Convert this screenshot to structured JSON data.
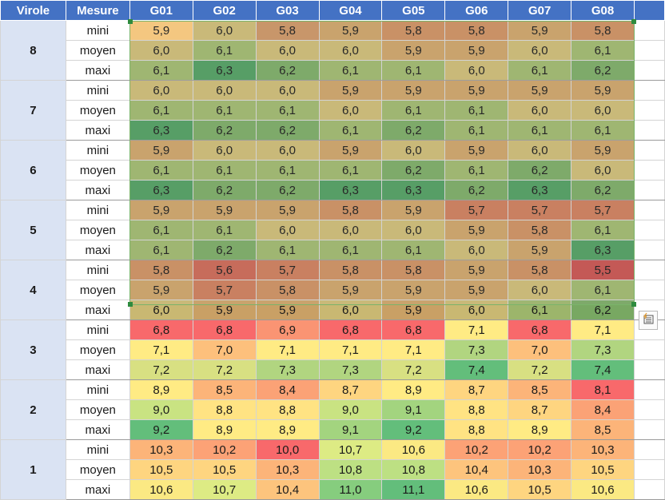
{
  "header": {
    "virole": "Virole",
    "mesure": "Mesure",
    "columns": [
      "G01",
      "G02",
      "G03",
      "G04",
      "G05",
      "G06",
      "G07",
      "G08"
    ]
  },
  "groups": [
    {
      "virole": "8",
      "rows": [
        {
          "mesure": "mini",
          "values": [
            "5,9",
            "6,0",
            "5,8",
            "5,9",
            "5,8",
            "5,8",
            "5,9",
            "5,8"
          ],
          "colors": [
            "#f8c77a",
            "#c9b872",
            "#c89262",
            "#c9a065",
            "#c98c5e",
            "#c98c5e",
            "#c9a065",
            "#c98c5e"
          ]
        },
        {
          "mesure": "moyen",
          "values": [
            "6,0",
            "6,1",
            "6,0",
            "6,0",
            "5,9",
            "5,9",
            "6,0",
            "6,1"
          ],
          "colors": [
            "#c9b872",
            "#9cb56b",
            "#c9b872",
            "#c9b872",
            "#c9a065",
            "#c9a065",
            "#c9b872",
            "#9cb56b"
          ]
        },
        {
          "mesure": "maxi",
          "values": [
            "6,1",
            "6,3",
            "6,2",
            "6,1",
            "6,1",
            "6,0",
            "6,1",
            "6,2"
          ],
          "colors": [
            "#9cb56b",
            "#4e9b5e",
            "#78a862",
            "#9cb56b",
            "#9cb56b",
            "#c9b872",
            "#9cb56b",
            "#78a862"
          ]
        }
      ]
    },
    {
      "virole": "7",
      "rows": [
        {
          "mesure": "mini",
          "values": [
            "6,0",
            "6,0",
            "6,0",
            "5,9",
            "5,9",
            "5,9",
            "5,9",
            "5,9"
          ],
          "colors": [
            "#c9b872",
            "#c9b872",
            "#c9b872",
            "#c9a065",
            "#c9a065",
            "#c9a065",
            "#c9a065",
            "#c9a065"
          ]
        },
        {
          "mesure": "moyen",
          "values": [
            "6,1",
            "6,1",
            "6,1",
            "6,0",
            "6,1",
            "6,1",
            "6,0",
            "6,0"
          ],
          "colors": [
            "#9cb56b",
            "#9cb56b",
            "#9cb56b",
            "#c9b872",
            "#9cb56b",
            "#9cb56b",
            "#c9b872",
            "#c9b872"
          ]
        },
        {
          "mesure": "maxi",
          "values": [
            "6,3",
            "6,2",
            "6,2",
            "6,1",
            "6,2",
            "6,1",
            "6,1",
            "6,1"
          ],
          "colors": [
            "#4e9b5e",
            "#78a862",
            "#78a862",
            "#9cb56b",
            "#78a862",
            "#9cb56b",
            "#9cb56b",
            "#9cb56b"
          ]
        }
      ]
    },
    {
      "virole": "6",
      "rows": [
        {
          "mesure": "mini",
          "values": [
            "5,9",
            "6,0",
            "6,0",
            "5,9",
            "6,0",
            "5,9",
            "6,0",
            "5,9"
          ],
          "colors": [
            "#c9a065",
            "#c9b872",
            "#c9b872",
            "#c9a065",
            "#c9b872",
            "#c9a065",
            "#c9b872",
            "#c9a065"
          ]
        },
        {
          "mesure": "moyen",
          "values": [
            "6,1",
            "6,1",
            "6,1",
            "6,1",
            "6,2",
            "6,1",
            "6,2",
            "6,0"
          ],
          "colors": [
            "#9cb56b",
            "#9cb56b",
            "#9cb56b",
            "#9cb56b",
            "#78a862",
            "#9cb56b",
            "#78a862",
            "#c9b872"
          ]
        },
        {
          "mesure": "maxi",
          "values": [
            "6,3",
            "6,2",
            "6,2",
            "6,3",
            "6,3",
            "6,2",
            "6,3",
            "6,2"
          ],
          "colors": [
            "#4e9b5e",
            "#78a862",
            "#78a862",
            "#4e9b5e",
            "#4e9b5e",
            "#78a862",
            "#4e9b5e",
            "#78a862"
          ]
        }
      ]
    },
    {
      "virole": "5",
      "rows": [
        {
          "mesure": "mini",
          "values": [
            "5,9",
            "5,9",
            "5,9",
            "5,8",
            "5,9",
            "5,7",
            "5,7",
            "5,7"
          ],
          "colors": [
            "#c9a065",
            "#c9a065",
            "#c9a065",
            "#c98c5e",
            "#c9a065",
            "#c97a58",
            "#c97a58",
            "#c97a58"
          ]
        },
        {
          "mesure": "moyen",
          "values": [
            "6,1",
            "6,1",
            "6,0",
            "6,0",
            "6,0",
            "5,9",
            "5,8",
            "6,1"
          ],
          "colors": [
            "#9cb56b",
            "#9cb56b",
            "#c9b872",
            "#c9b872",
            "#c9b872",
            "#c9a065",
            "#c98c5e",
            "#9cb56b"
          ]
        },
        {
          "mesure": "maxi",
          "values": [
            "6,1",
            "6,2",
            "6,1",
            "6,1",
            "6,1",
            "6,0",
            "5,9",
            "6,3"
          ],
          "colors": [
            "#9cb56b",
            "#78a862",
            "#9cb56b",
            "#9cb56b",
            "#9cb56b",
            "#c9b872",
            "#c9a065",
            "#4e9b5e"
          ]
        }
      ]
    },
    {
      "virole": "4",
      "rows": [
        {
          "mesure": "mini",
          "values": [
            "5,8",
            "5,6",
            "5,7",
            "5,8",
            "5,8",
            "5,9",
            "5,8",
            "5,5"
          ],
          "colors": [
            "#c98c5e",
            "#c76452",
            "#c97a58",
            "#c98c5e",
            "#c98c5e",
            "#c9a065",
            "#c98c5e",
            "#c4504d"
          ]
        },
        {
          "mesure": "moyen",
          "values": [
            "5,9",
            "5,7",
            "5,8",
            "5,9",
            "5,9",
            "5,9",
            "6,0",
            "6,1"
          ],
          "colors": [
            "#c9a065",
            "#c97a58",
            "#c98c5e",
            "#c9a065",
            "#c9a065",
            "#c9a065",
            "#c9b872",
            "#9cb56b"
          ]
        },
        {
          "mesure": "maxi",
          "values": [
            "6,0",
            "5,9",
            "5,9",
            "6,0",
            "5,9",
            "6,0",
            "6,1",
            "6,2"
          ],
          "colors": [
            "#c9b872",
            "#c9a065",
            "#c9a065",
            "#c9b872",
            "#c9a065",
            "#c9b872",
            "#9cb56b",
            "#78a862"
          ]
        }
      ]
    },
    {
      "virole": "3",
      "rows": [
        {
          "mesure": "mini",
          "values": [
            "6,8",
            "6,8",
            "6,9",
            "6,8",
            "6,8",
            "7,1",
            "6,8",
            "7,1"
          ],
          "colors": [
            "#f8696b",
            "#f8696b",
            "#fa9473",
            "#f8696b",
            "#f8696b",
            "#ffeb84",
            "#f8696b",
            "#ffeb84"
          ]
        },
        {
          "mesure": "moyen",
          "values": [
            "7,1",
            "7,0",
            "7,1",
            "7,1",
            "7,1",
            "7,3",
            "7,0",
            "7,3"
          ],
          "colors": [
            "#ffeb84",
            "#fdc07c",
            "#ffeb84",
            "#ffeb84",
            "#ffeb84",
            "#b1d580",
            "#fdc07c",
            "#b1d580"
          ]
        },
        {
          "mesure": "maxi",
          "values": [
            "7,2",
            "7,2",
            "7,3",
            "7,3",
            "7,2",
            "7,4",
            "7,2",
            "7,4"
          ],
          "colors": [
            "#d8e082",
            "#d8e082",
            "#b1d580",
            "#b1d580",
            "#d8e082",
            "#63be7b",
            "#d8e082",
            "#63be7b"
          ]
        }
      ]
    },
    {
      "virole": "2",
      "rows": [
        {
          "mesure": "mini",
          "values": [
            "8,9",
            "8,5",
            "8,4",
            "8,7",
            "8,9",
            "8,7",
            "8,5",
            "8,1"
          ],
          "colors": [
            "#ffeb84",
            "#fcb479",
            "#fba276",
            "#fed580",
            "#ffeb84",
            "#fed580",
            "#fcb479",
            "#f8696b"
          ]
        },
        {
          "mesure": "moyen",
          "values": [
            "9,0",
            "8,8",
            "8,8",
            "9,0",
            "9,1",
            "8,8",
            "8,7",
            "8,4"
          ],
          "colors": [
            "#c9e382",
            "#ffe383",
            "#ffe383",
            "#c9e382",
            "#a3d47f",
            "#ffe383",
            "#fed580",
            "#fba276"
          ]
        },
        {
          "mesure": "maxi",
          "values": [
            "9,2",
            "8,9",
            "8,9",
            "9,1",
            "9,2",
            "8,8",
            "8,9",
            "8,5"
          ],
          "colors": [
            "#63be7b",
            "#ffeb84",
            "#ffeb84",
            "#a3d47f",
            "#63be7b",
            "#ffe383",
            "#ffeb84",
            "#fcb479"
          ]
        }
      ]
    },
    {
      "virole": "1",
      "rows": [
        {
          "mesure": "mini",
          "values": [
            "10,3",
            "10,2",
            "10,0",
            "10,7",
            "10,6",
            "10,2",
            "10,2",
            "10,3"
          ],
          "colors": [
            "#fcb479",
            "#fca276",
            "#f8696b",
            "#ddeb84",
            "#fbe983",
            "#fca276",
            "#fca276",
            "#fcb479"
          ]
        },
        {
          "mesure": "moyen",
          "values": [
            "10,5",
            "10,5",
            "10,3",
            "10,8",
            "10,8",
            "10,4",
            "10,3",
            "10,5"
          ],
          "colors": [
            "#fed580",
            "#fed580",
            "#fcb479",
            "#bde083",
            "#bde083",
            "#fdc47d",
            "#fcb479",
            "#fed580"
          ]
        },
        {
          "mesure": "maxi",
          "values": [
            "10,6",
            "10,7",
            "10,4",
            "11,0",
            "11,1",
            "10,6",
            "10,5",
            "10,6"
          ],
          "colors": [
            "#fbe983",
            "#ddeb84",
            "#fdc47d",
            "#86cd7e",
            "#63be7b",
            "#fbe983",
            "#fed580",
            "#fbe983"
          ]
        }
      ]
    }
  ],
  "quick_analysis_icon": "quick-analysis-icon"
}
